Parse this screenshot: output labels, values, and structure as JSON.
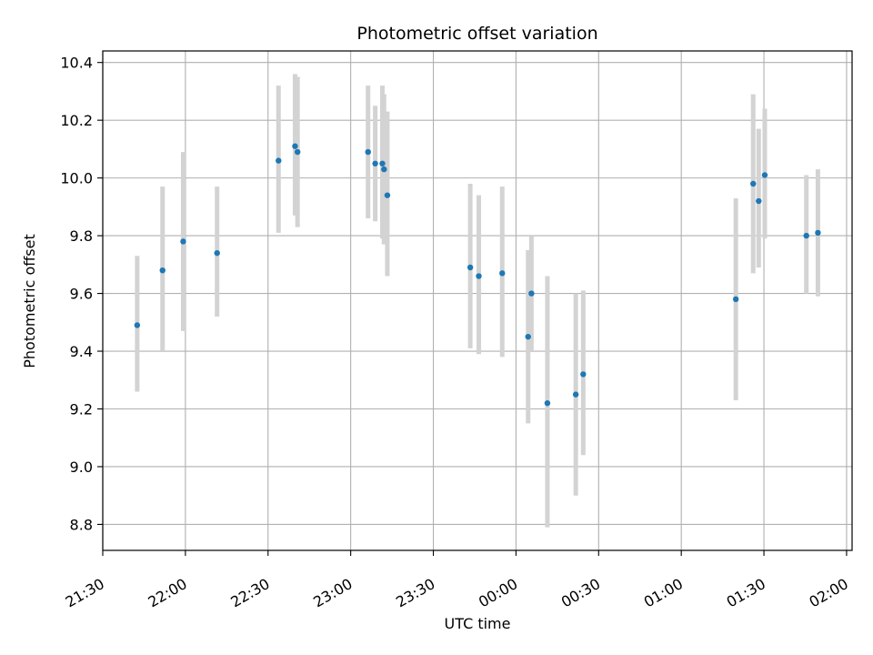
{
  "chart_data": {
    "type": "scatter",
    "title": "Photometric offset variation",
    "xlabel": "UTC time",
    "ylabel": "Photometric offset",
    "x_unit": "minutes relative to 21:30 UTC",
    "xlim": [
      0,
      272
    ],
    "ylim": [
      8.71,
      10.44
    ],
    "x_ticks": [
      {
        "value": 0,
        "label": "21:30"
      },
      {
        "value": 30,
        "label": "22:00"
      },
      {
        "value": 60,
        "label": "22:30"
      },
      {
        "value": 90,
        "label": "23:00"
      },
      {
        "value": 120,
        "label": "23:30"
      },
      {
        "value": 150,
        "label": "00:00"
      },
      {
        "value": 180,
        "label": "00:30"
      },
      {
        "value": 210,
        "label": "01:00"
      },
      {
        "value": 240,
        "label": "01:30"
      },
      {
        "value": 270,
        "label": "02:00"
      }
    ],
    "y_ticks": [
      {
        "value": 8.8,
        "label": "8.8"
      },
      {
        "value": 9.0,
        "label": "9.0"
      },
      {
        "value": 9.2,
        "label": "9.2"
      },
      {
        "value": 9.4,
        "label": "9.4"
      },
      {
        "value": 9.6,
        "label": "9.6"
      },
      {
        "value": 9.8,
        "label": "9.8"
      },
      {
        "value": 10.0,
        "label": "10.0"
      },
      {
        "value": 10.2,
        "label": "10.2"
      },
      {
        "value": 10.4,
        "label": "10.4"
      }
    ],
    "grid": true,
    "point_color": "#1f77b4",
    "errorbar_color": "#d3d3d3",
    "points": [
      {
        "x": 12.5,
        "y": 9.49,
        "low": 9.26,
        "high": 9.73
      },
      {
        "x": 21.7,
        "y": 9.68,
        "low": 9.4,
        "high": 9.97
      },
      {
        "x": 29.2,
        "y": 9.78,
        "low": 9.47,
        "high": 10.09
      },
      {
        "x": 41.5,
        "y": 9.74,
        "low": 9.52,
        "high": 9.97
      },
      {
        "x": 63.8,
        "y": 10.06,
        "low": 9.81,
        "high": 10.32
      },
      {
        "x": 69.8,
        "y": 10.11,
        "low": 9.87,
        "high": 10.36
      },
      {
        "x": 70.7,
        "y": 10.09,
        "low": 9.83,
        "high": 10.35
      },
      {
        "x": 96.3,
        "y": 10.09,
        "low": 9.86,
        "high": 10.32
      },
      {
        "x": 98.9,
        "y": 10.05,
        "low": 9.85,
        "high": 10.25
      },
      {
        "x": 101.5,
        "y": 10.05,
        "low": 9.79,
        "high": 10.32
      },
      {
        "x": 102.1,
        "y": 10.03,
        "low": 9.77,
        "high": 10.29
      },
      {
        "x": 103.3,
        "y": 9.94,
        "low": 9.66,
        "high": 10.23
      },
      {
        "x": 133.4,
        "y": 9.69,
        "low": 9.41,
        "high": 9.98
      },
      {
        "x": 136.5,
        "y": 9.66,
        "low": 9.39,
        "high": 9.94
      },
      {
        "x": 145.0,
        "y": 9.67,
        "low": 9.38,
        "high": 9.97
      },
      {
        "x": 154.4,
        "y": 9.45,
        "low": 9.15,
        "high": 9.75
      },
      {
        "x": 155.6,
        "y": 9.6,
        "low": 9.4,
        "high": 9.8
      },
      {
        "x": 161.4,
        "y": 9.22,
        "low": 8.79,
        "high": 9.66
      },
      {
        "x": 171.7,
        "y": 9.25,
        "low": 8.9,
        "high": 9.6
      },
      {
        "x": 174.4,
        "y": 9.32,
        "low": 9.04,
        "high": 9.61
      },
      {
        "x": 229.8,
        "y": 9.58,
        "low": 9.23,
        "high": 9.93
      },
      {
        "x": 236.1,
        "y": 9.98,
        "low": 9.67,
        "high": 10.29
      },
      {
        "x": 238.1,
        "y": 9.92,
        "low": 9.69,
        "high": 10.17
      },
      {
        "x": 240.3,
        "y": 10.01,
        "low": 9.79,
        "high": 10.24
      },
      {
        "x": 255.4,
        "y": 9.8,
        "low": 9.6,
        "high": 10.01
      },
      {
        "x": 259.6,
        "y": 9.81,
        "low": 9.59,
        "high": 10.03
      }
    ]
  }
}
